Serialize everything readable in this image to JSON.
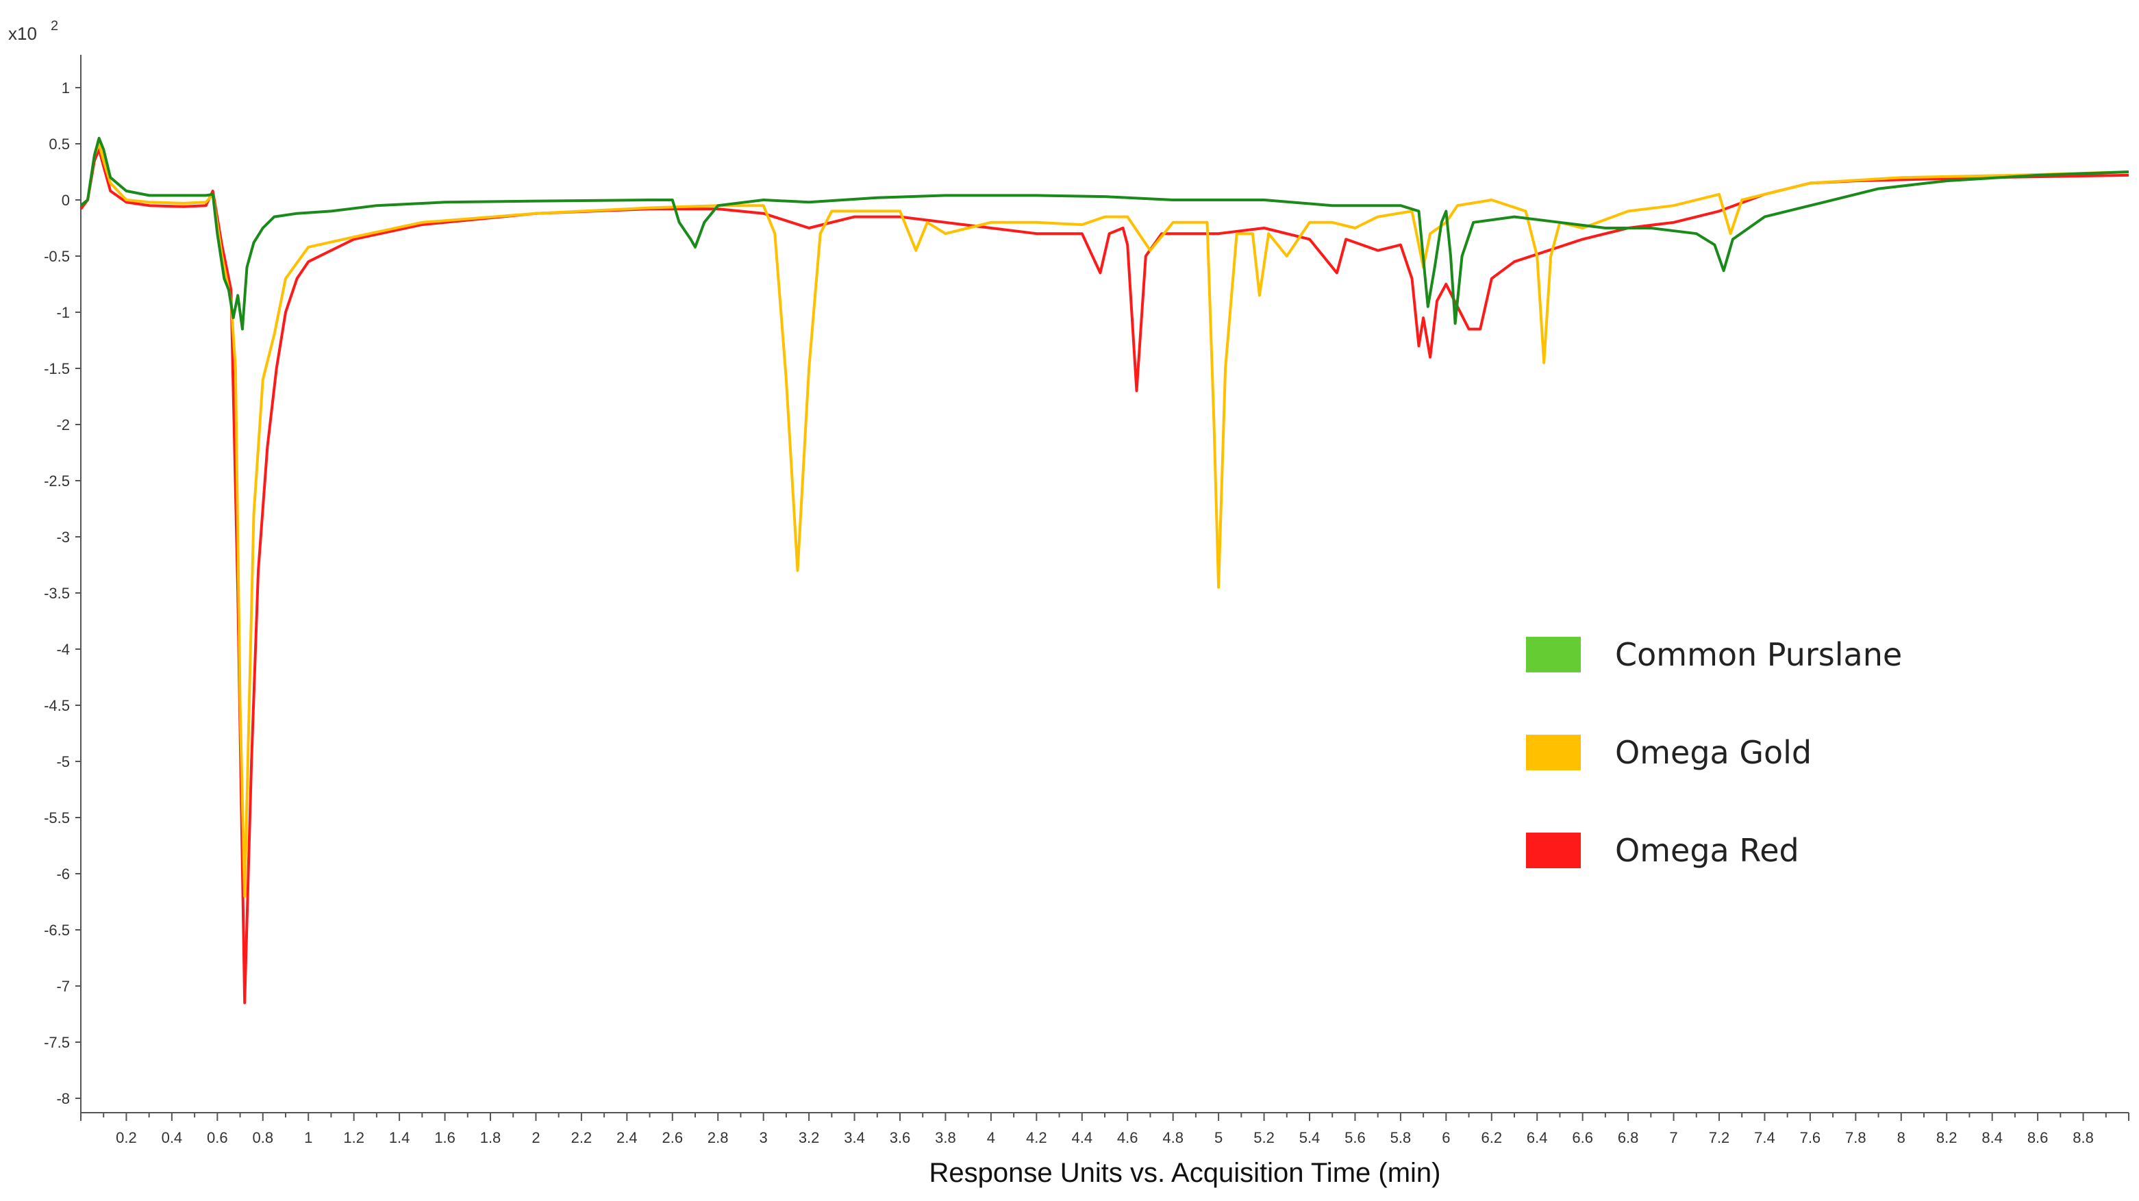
{
  "chart_data": {
    "type": "line",
    "title": "",
    "xlabel": "Response Units vs. Acquisition Time (min)",
    "ylabel": "",
    "y_multiplier_label": "x10",
    "y_multiplier_exponent": "2",
    "xlim": [
      0,
      9
    ],
    "ylim": [
      -8,
      1.3
    ],
    "x_ticks": [
      "0.2",
      "0.4",
      "0.6",
      "0.8",
      "1",
      "1.2",
      "1.4",
      "1.6",
      "1.8",
      "2",
      "2.2",
      "2.4",
      "2.6",
      "2.8",
      "3",
      "3.2",
      "3.4",
      "3.6",
      "3.8",
      "4",
      "4.2",
      "4.4",
      "4.6",
      "4.8",
      "5",
      "5.2",
      "5.4",
      "5.6",
      "5.8",
      "6",
      "6.2",
      "6.4",
      "6.6",
      "6.8",
      "7",
      "7.2",
      "7.4",
      "7.6",
      "7.8",
      "8",
      "8.2",
      "8.4",
      "8.6",
      "8.8"
    ],
    "y_ticks": [
      "1",
      "0.5",
      "0",
      "-0.5",
      "-1",
      "-1.5",
      "-2",
      "-2.5",
      "-3",
      "-3.5",
      "-4",
      "-4.5",
      "-5",
      "-5.5",
      "-6",
      "-6.5",
      "-7",
      "-7.5",
      "-8"
    ],
    "grid": false,
    "legend_position": "right",
    "series": [
      {
        "name": "Common Purslane",
        "color": "#1a8a1a",
        "legend_color": "#66cc33",
        "points": [
          [
            0,
            -0.05
          ],
          [
            0.03,
            0.0
          ],
          [
            0.06,
            0.4
          ],
          [
            0.08,
            0.55
          ],
          [
            0.1,
            0.45
          ],
          [
            0.13,
            0.2
          ],
          [
            0.2,
            0.08
          ],
          [
            0.3,
            0.04
          ],
          [
            0.45,
            0.04
          ],
          [
            0.55,
            0.04
          ],
          [
            0.58,
            0.05
          ],
          [
            0.6,
            -0.3
          ],
          [
            0.63,
            -0.7
          ],
          [
            0.65,
            -0.8
          ],
          [
            0.67,
            -1.05
          ],
          [
            0.69,
            -0.85
          ],
          [
            0.71,
            -1.15
          ],
          [
            0.73,
            -0.6
          ],
          [
            0.76,
            -0.38
          ],
          [
            0.8,
            -0.25
          ],
          [
            0.85,
            -0.15
          ],
          [
            0.95,
            -0.12
          ],
          [
            1.1,
            -0.1
          ],
          [
            1.3,
            -0.05
          ],
          [
            1.6,
            -0.02
          ],
          [
            2.0,
            -0.01
          ],
          [
            2.5,
            0.0
          ],
          [
            2.6,
            0.0
          ],
          [
            2.63,
            -0.2
          ],
          [
            2.68,
            -0.35
          ],
          [
            2.7,
            -0.42
          ],
          [
            2.74,
            -0.2
          ],
          [
            2.8,
            -0.05
          ],
          [
            3.0,
            0.0
          ],
          [
            3.2,
            -0.02
          ],
          [
            3.5,
            0.02
          ],
          [
            3.8,
            0.04
          ],
          [
            4.2,
            0.04
          ],
          [
            4.5,
            0.03
          ],
          [
            4.8,
            0.0
          ],
          [
            5.2,
            0.0
          ],
          [
            5.5,
            -0.05
          ],
          [
            5.8,
            -0.05
          ],
          [
            5.88,
            -0.1
          ],
          [
            5.92,
            -0.95
          ],
          [
            5.95,
            -0.6
          ],
          [
            5.98,
            -0.2
          ],
          [
            6.0,
            -0.1
          ],
          [
            6.02,
            -0.5
          ],
          [
            6.04,
            -1.1
          ],
          [
            6.07,
            -0.5
          ],
          [
            6.12,
            -0.2
          ],
          [
            6.3,
            -0.15
          ],
          [
            6.5,
            -0.2
          ],
          [
            6.7,
            -0.25
          ],
          [
            6.9,
            -0.25
          ],
          [
            7.1,
            -0.3
          ],
          [
            7.18,
            -0.4
          ],
          [
            7.22,
            -0.63
          ],
          [
            7.26,
            -0.35
          ],
          [
            7.4,
            -0.15
          ],
          [
            7.6,
            -0.05
          ],
          [
            7.9,
            0.1
          ],
          [
            8.2,
            0.17
          ],
          [
            8.6,
            0.22
          ],
          [
            9.0,
            0.25
          ]
        ]
      },
      {
        "name": "Omega Gold",
        "color": "#ffc000",
        "legend_color": "#ffc000",
        "points": [
          [
            0,
            -0.05
          ],
          [
            0.03,
            0.0
          ],
          [
            0.06,
            0.4
          ],
          [
            0.08,
            0.5
          ],
          [
            0.1,
            0.35
          ],
          [
            0.13,
            0.15
          ],
          [
            0.2,
            0.0
          ],
          [
            0.3,
            -0.02
          ],
          [
            0.45,
            -0.03
          ],
          [
            0.55,
            -0.02
          ],
          [
            0.58,
            0.05
          ],
          [
            0.62,
            -0.5
          ],
          [
            0.66,
            -0.9
          ],
          [
            0.68,
            -1.5
          ],
          [
            0.7,
            -4.5
          ],
          [
            0.72,
            -6.2
          ],
          [
            0.74,
            -4.5
          ],
          [
            0.76,
            -2.8
          ],
          [
            0.8,
            -1.6
          ],
          [
            0.85,
            -1.2
          ],
          [
            0.9,
            -0.7
          ],
          [
            1.0,
            -0.42
          ],
          [
            1.2,
            -0.33
          ],
          [
            1.5,
            -0.2
          ],
          [
            2.0,
            -0.12
          ],
          [
            2.5,
            -0.07
          ],
          [
            2.8,
            -0.05
          ],
          [
            3.0,
            -0.05
          ],
          [
            3.05,
            -0.3
          ],
          [
            3.1,
            -1.6
          ],
          [
            3.15,
            -3.3
          ],
          [
            3.2,
            -1.5
          ],
          [
            3.25,
            -0.3
          ],
          [
            3.3,
            -0.1
          ],
          [
            3.6,
            -0.1
          ],
          [
            3.67,
            -0.45
          ],
          [
            3.72,
            -0.2
          ],
          [
            3.8,
            -0.3
          ],
          [
            3.9,
            -0.25
          ],
          [
            4.0,
            -0.2
          ],
          [
            4.2,
            -0.2
          ],
          [
            4.4,
            -0.22
          ],
          [
            4.5,
            -0.15
          ],
          [
            4.6,
            -0.15
          ],
          [
            4.7,
            -0.45
          ],
          [
            4.8,
            -0.2
          ],
          [
            4.95,
            -0.2
          ],
          [
            4.98,
            -2.0
          ],
          [
            5.0,
            -3.45
          ],
          [
            5.03,
            -1.5
          ],
          [
            5.08,
            -0.3
          ],
          [
            5.15,
            -0.3
          ],
          [
            5.18,
            -0.85
          ],
          [
            5.22,
            -0.3
          ],
          [
            5.3,
            -0.5
          ],
          [
            5.4,
            -0.2
          ],
          [
            5.5,
            -0.2
          ],
          [
            5.6,
            -0.25
          ],
          [
            5.7,
            -0.15
          ],
          [
            5.85,
            -0.1
          ],
          [
            5.9,
            -0.6
          ],
          [
            5.93,
            -0.3
          ],
          [
            6.0,
            -0.2
          ],
          [
            6.05,
            -0.05
          ],
          [
            6.2,
            0.0
          ],
          [
            6.35,
            -0.1
          ],
          [
            6.4,
            -0.5
          ],
          [
            6.43,
            -1.45
          ],
          [
            6.46,
            -0.5
          ],
          [
            6.5,
            -0.2
          ],
          [
            6.6,
            -0.25
          ],
          [
            6.8,
            -0.1
          ],
          [
            7.0,
            -0.05
          ],
          [
            7.2,
            0.05
          ],
          [
            7.25,
            -0.3
          ],
          [
            7.3,
            0.0
          ],
          [
            7.6,
            0.15
          ],
          [
            8.0,
            0.2
          ],
          [
            8.5,
            0.22
          ],
          [
            9.0,
            0.25
          ]
        ]
      },
      {
        "name": "Omega Red",
        "color": "#ff1a1a",
        "legend_color": "#ff1a1a",
        "points": [
          [
            0,
            -0.08
          ],
          [
            0.03,
            0.0
          ],
          [
            0.06,
            0.35
          ],
          [
            0.08,
            0.45
          ],
          [
            0.1,
            0.3
          ],
          [
            0.13,
            0.08
          ],
          [
            0.2,
            -0.02
          ],
          [
            0.3,
            -0.05
          ],
          [
            0.45,
            -0.06
          ],
          [
            0.55,
            -0.05
          ],
          [
            0.58,
            0.08
          ],
          [
            0.62,
            -0.4
          ],
          [
            0.66,
            -0.8
          ],
          [
            0.69,
            -3.5
          ],
          [
            0.72,
            -7.15
          ],
          [
            0.75,
            -5.0
          ],
          [
            0.78,
            -3.3
          ],
          [
            0.82,
            -2.2
          ],
          [
            0.86,
            -1.5
          ],
          [
            0.9,
            -1.0
          ],
          [
            0.95,
            -0.7
          ],
          [
            1.0,
            -0.55
          ],
          [
            1.2,
            -0.35
          ],
          [
            1.5,
            -0.22
          ],
          [
            2.0,
            -0.12
          ],
          [
            2.5,
            -0.08
          ],
          [
            2.8,
            -0.08
          ],
          [
            3.0,
            -0.12
          ],
          [
            3.2,
            -0.25
          ],
          [
            3.4,
            -0.15
          ],
          [
            3.6,
            -0.15
          ],
          [
            3.8,
            -0.2
          ],
          [
            4.0,
            -0.25
          ],
          [
            4.2,
            -0.3
          ],
          [
            4.4,
            -0.3
          ],
          [
            4.48,
            -0.65
          ],
          [
            4.52,
            -0.3
          ],
          [
            4.58,
            -0.25
          ],
          [
            4.6,
            -0.4
          ],
          [
            4.64,
            -1.7
          ],
          [
            4.68,
            -0.5
          ],
          [
            4.75,
            -0.3
          ],
          [
            5.0,
            -0.3
          ],
          [
            5.2,
            -0.25
          ],
          [
            5.4,
            -0.35
          ],
          [
            5.52,
            -0.65
          ],
          [
            5.56,
            -0.35
          ],
          [
            5.7,
            -0.45
          ],
          [
            5.8,
            -0.4
          ],
          [
            5.85,
            -0.7
          ],
          [
            5.88,
            -1.3
          ],
          [
            5.9,
            -1.05
          ],
          [
            5.93,
            -1.4
          ],
          [
            5.96,
            -0.9
          ],
          [
            6.0,
            -0.75
          ],
          [
            6.05,
            -0.95
          ],
          [
            6.1,
            -1.15
          ],
          [
            6.15,
            -1.15
          ],
          [
            6.2,
            -0.7
          ],
          [
            6.3,
            -0.55
          ],
          [
            6.45,
            -0.45
          ],
          [
            6.6,
            -0.35
          ],
          [
            6.8,
            -0.25
          ],
          [
            7.0,
            -0.2
          ],
          [
            7.2,
            -0.1
          ],
          [
            7.4,
            0.05
          ],
          [
            7.6,
            0.15
          ],
          [
            7.8,
            0.17
          ],
          [
            8.0,
            0.18
          ],
          [
            8.4,
            0.2
          ],
          [
            9.0,
            0.22
          ]
        ]
      }
    ]
  }
}
